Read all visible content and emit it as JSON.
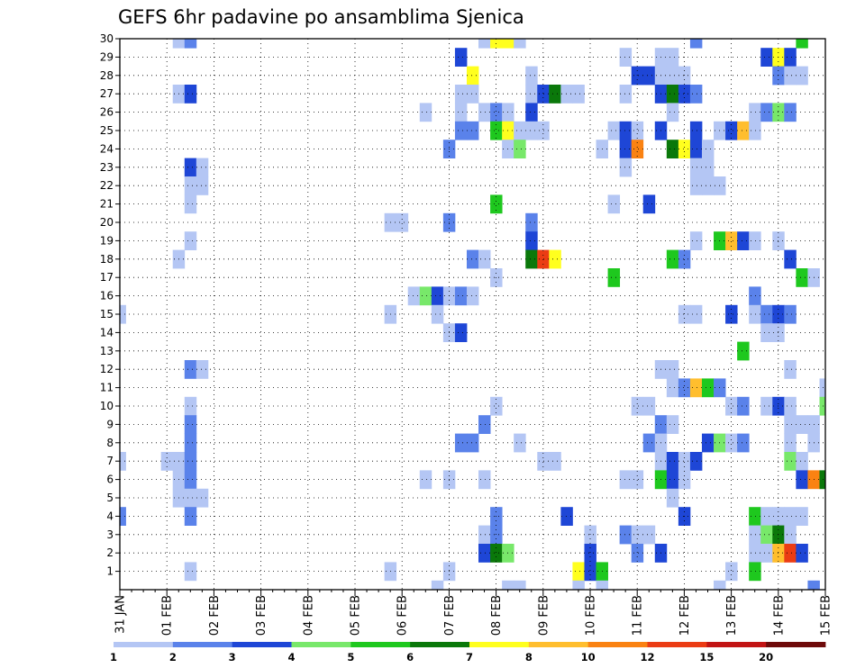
{
  "chart_data": {
    "type": "heatmap",
    "title": "GEFS 6hr padavine po ansamblima Sjenica",
    "xlabel": "",
    "ylabel": "",
    "x_tick_labels": [
      "31 JAN",
      "01 FEB",
      "02 FEB",
      "03 FEB",
      "04 FEB",
      "05 FEB",
      "06 FEB",
      "07 FEB",
      "08 FEB",
      "09 FEB",
      "10 FEB",
      "11 FEB",
      "12 FEB",
      "13 FEB",
      "14 FEB",
      "15 FEB"
    ],
    "y_tick_labels": [
      "1",
      "2",
      "3",
      "4",
      "5",
      "6",
      "7",
      "8",
      "9",
      "10",
      "11",
      "12",
      "13",
      "14",
      "15",
      "16",
      "17",
      "18",
      "19",
      "20",
      "21",
      "22",
      "23",
      "24",
      "25",
      "26",
      "27",
      "28",
      "29",
      "30"
    ],
    "time_steps": 61,
    "members": 30,
    "legend": {
      "position": "bottom",
      "labels": [
        "1",
        "2",
        "3",
        "4",
        "5",
        "6",
        "7",
        "8",
        "10",
        "12",
        "15",
        "20"
      ],
      "colors": [
        "#b4c6f4",
        "#5a82ea",
        "#1e46d6",
        "#78e86a",
        "#1ec81e",
        "#0a780a",
        "#ffff1e",
        "#ffbe2e",
        "#fa8212",
        "#eb3c14",
        "#c21414",
        "#6e0a0a"
      ]
    },
    "cells": [
      [
        "30",
        [
          [
            5,
            0
          ],
          [
            6,
            1
          ],
          [
            31,
            0
          ],
          [
            32,
            6
          ],
          [
            33,
            6
          ],
          [
            34,
            0
          ],
          [
            49,
            1
          ],
          [
            58,
            4
          ]
        ]
      ],
      [
        "29",
        [
          [
            29,
            2
          ],
          [
            43,
            0
          ],
          [
            46,
            0
          ],
          [
            47,
            0
          ],
          [
            55,
            2
          ],
          [
            56,
            6
          ],
          [
            57,
            2
          ]
        ]
      ],
      [
        "28",
        [
          [
            30,
            6
          ],
          [
            35,
            0
          ],
          [
            44,
            2
          ],
          [
            45,
            2
          ],
          [
            46,
            0
          ],
          [
            47,
            0
          ],
          [
            48,
            0
          ],
          [
            56,
            1
          ],
          [
            57,
            0
          ],
          [
            58,
            0
          ]
        ]
      ],
      [
        "27",
        [
          [
            5,
            0
          ],
          [
            6,
            2
          ],
          [
            29,
            0
          ],
          [
            30,
            0
          ],
          [
            35,
            0
          ],
          [
            36,
            2
          ],
          [
            37,
            5
          ],
          [
            38,
            0
          ],
          [
            39,
            0
          ],
          [
            43,
            0
          ],
          [
            46,
            2
          ],
          [
            47,
            5
          ],
          [
            48,
            2
          ],
          [
            49,
            1
          ]
        ]
      ],
      [
        "26",
        [
          [
            26,
            0
          ],
          [
            29,
            0
          ],
          [
            31,
            0
          ],
          [
            32,
            1
          ],
          [
            33,
            0
          ],
          [
            35,
            2
          ],
          [
            47,
            0
          ],
          [
            54,
            0
          ],
          [
            55,
            1
          ],
          [
            56,
            3
          ],
          [
            57,
            1
          ]
        ]
      ],
      [
        "25",
        [
          [
            29,
            1
          ],
          [
            30,
            1
          ],
          [
            32,
            4
          ],
          [
            33,
            6
          ],
          [
            34,
            0
          ],
          [
            35,
            0
          ],
          [
            36,
            0
          ],
          [
            42,
            0
          ],
          [
            43,
            2
          ],
          [
            44,
            0
          ],
          [
            46,
            2
          ],
          [
            49,
            2
          ],
          [
            51,
            0
          ],
          [
            52,
            2
          ],
          [
            53,
            7
          ],
          [
            54,
            0
          ]
        ]
      ],
      [
        "24",
        [
          [
            28,
            1
          ],
          [
            33,
            0
          ],
          [
            34,
            3
          ],
          [
            41,
            0
          ],
          [
            43,
            2
          ],
          [
            44,
            8
          ],
          [
            47,
            5
          ],
          [
            48,
            6
          ],
          [
            49,
            2
          ],
          [
            50,
            0
          ]
        ]
      ],
      [
        "23",
        [
          [
            6,
            2
          ],
          [
            7,
            0
          ],
          [
            43,
            0
          ],
          [
            49,
            0
          ],
          [
            50,
            0
          ]
        ]
      ],
      [
        "22",
        [
          [
            6,
            0
          ],
          [
            7,
            0
          ],
          [
            49,
            0
          ],
          [
            50,
            0
          ],
          [
            51,
            0
          ]
        ]
      ],
      [
        "21",
        [
          [
            6,
            0
          ],
          [
            32,
            4
          ],
          [
            42,
            0
          ],
          [
            45,
            2
          ]
        ]
      ],
      [
        "20",
        [
          [
            23,
            0
          ],
          [
            24,
            0
          ],
          [
            28,
            1
          ],
          [
            35,
            1
          ]
        ]
      ],
      [
        "19",
        [
          [
            6,
            0
          ],
          [
            35,
            2
          ],
          [
            49,
            0
          ],
          [
            51,
            4
          ],
          [
            52,
            7
          ],
          [
            53,
            2
          ],
          [
            54,
            0
          ],
          [
            56,
            0
          ]
        ]
      ],
      [
        "18",
        [
          [
            5,
            0
          ],
          [
            30,
            1
          ],
          [
            31,
            0
          ],
          [
            35,
            5
          ],
          [
            36,
            9
          ],
          [
            37,
            6
          ],
          [
            47,
            4
          ],
          [
            48,
            1
          ],
          [
            57,
            2
          ]
        ]
      ],
      [
        "17",
        [
          [
            32,
            0
          ],
          [
            42,
            4
          ],
          [
            58,
            4
          ],
          [
            59,
            0
          ]
        ]
      ],
      [
        "16",
        [
          [
            25,
            0
          ],
          [
            26,
            3
          ],
          [
            27,
            2
          ],
          [
            28,
            0
          ],
          [
            29,
            1
          ],
          [
            30,
            0
          ],
          [
            54,
            1
          ]
        ]
      ],
      [
        "15",
        [
          [
            0,
            0
          ],
          [
            23,
            0
          ],
          [
            27,
            0
          ],
          [
            48,
            0
          ],
          [
            49,
            0
          ],
          [
            52,
            2
          ],
          [
            54,
            0
          ],
          [
            55,
            1
          ],
          [
            56,
            2
          ],
          [
            57,
            1
          ]
        ]
      ],
      [
        "14",
        [
          [
            28,
            0
          ],
          [
            29,
            2
          ],
          [
            55,
            0
          ],
          [
            56,
            0
          ]
        ]
      ],
      [
        "13",
        [
          [
            53,
            4
          ]
        ]
      ],
      [
        "12",
        [
          [
            6,
            1
          ],
          [
            7,
            0
          ],
          [
            46,
            0
          ],
          [
            47,
            0
          ],
          [
            57,
            0
          ]
        ]
      ],
      [
        "11",
        [
          [
            47,
            0
          ],
          [
            48,
            1
          ],
          [
            49,
            7
          ],
          [
            50,
            4
          ],
          [
            51,
            1
          ],
          [
            60,
            0
          ]
        ]
      ],
      [
        "10",
        [
          [
            6,
            0
          ],
          [
            32,
            0
          ],
          [
            44,
            0
          ],
          [
            45,
            0
          ],
          [
            52,
            0
          ],
          [
            53,
            1
          ],
          [
            55,
            0
          ],
          [
            56,
            2
          ],
          [
            57,
            0
          ],
          [
            60,
            3
          ]
        ]
      ],
      [
        "9",
        [
          [
            6,
            1
          ],
          [
            31,
            1
          ],
          [
            46,
            1
          ],
          [
            47,
            0
          ],
          [
            57,
            0
          ],
          [
            58,
            0
          ],
          [
            59,
            0
          ]
        ]
      ],
      [
        "8",
        [
          [
            6,
            1
          ],
          [
            29,
            1
          ],
          [
            30,
            1
          ],
          [
            34,
            0
          ],
          [
            45,
            1
          ],
          [
            46,
            0
          ],
          [
            50,
            2
          ],
          [
            51,
            3
          ],
          [
            52,
            0
          ],
          [
            53,
            1
          ],
          [
            57,
            0
          ],
          [
            59,
            0
          ]
        ]
      ],
      [
        "7",
        [
          [
            0,
            0
          ],
          [
            4,
            0
          ],
          [
            5,
            0
          ],
          [
            6,
            1
          ],
          [
            36,
            0
          ],
          [
            37,
            0
          ],
          [
            46,
            0
          ],
          [
            47,
            2
          ],
          [
            48,
            0
          ],
          [
            49,
            2
          ],
          [
            57,
            3
          ],
          [
            58,
            0
          ]
        ]
      ],
      [
        "6",
        [
          [
            5,
            0
          ],
          [
            6,
            1
          ],
          [
            26,
            0
          ],
          [
            28,
            0
          ],
          [
            31,
            0
          ],
          [
            43,
            0
          ],
          [
            44,
            0
          ],
          [
            46,
            4
          ],
          [
            47,
            2
          ],
          [
            48,
            0
          ],
          [
            58,
            2
          ],
          [
            59,
            8
          ],
          [
            60,
            5
          ]
        ]
      ],
      [
        "5",
        [
          [
            5,
            0
          ],
          [
            6,
            0
          ],
          [
            7,
            0
          ],
          [
            47,
            0
          ]
        ]
      ],
      [
        "4",
        [
          [
            0,
            1
          ],
          [
            6,
            1
          ],
          [
            32,
            1
          ],
          [
            38,
            2
          ],
          [
            48,
            2
          ],
          [
            54,
            4
          ],
          [
            55,
            0
          ],
          [
            56,
            0
          ],
          [
            57,
            0
          ],
          [
            58,
            0
          ]
        ]
      ],
      [
        "3",
        [
          [
            31,
            0
          ],
          [
            32,
            1
          ],
          [
            40,
            0
          ],
          [
            43,
            1
          ],
          [
            44,
            0
          ],
          [
            45,
            0
          ],
          [
            54,
            0
          ],
          [
            55,
            3
          ],
          [
            56,
            5
          ],
          [
            57,
            0
          ]
        ]
      ],
      [
        "2",
        [
          [
            31,
            2
          ],
          [
            32,
            5
          ],
          [
            33,
            3
          ],
          [
            40,
            2
          ],
          [
            44,
            1
          ],
          [
            46,
            2
          ],
          [
            54,
            0
          ],
          [
            55,
            0
          ],
          [
            56,
            7
          ],
          [
            57,
            9
          ],
          [
            58,
            2
          ]
        ]
      ],
      [
        "1",
        [
          [
            6,
            0
          ],
          [
            23,
            0
          ],
          [
            28,
            0
          ],
          [
            39,
            6
          ],
          [
            40,
            2
          ],
          [
            41,
            4
          ],
          [
            52,
            0
          ],
          [
            54,
            4
          ]
        ]
      ],
      [
        "0",
        [
          [
            27,
            0
          ],
          [
            33,
            0
          ],
          [
            34,
            0
          ],
          [
            39,
            0
          ],
          [
            41,
            0
          ],
          [
            51,
            0
          ],
          [
            59,
            1
          ]
        ]
      ]
    ]
  }
}
